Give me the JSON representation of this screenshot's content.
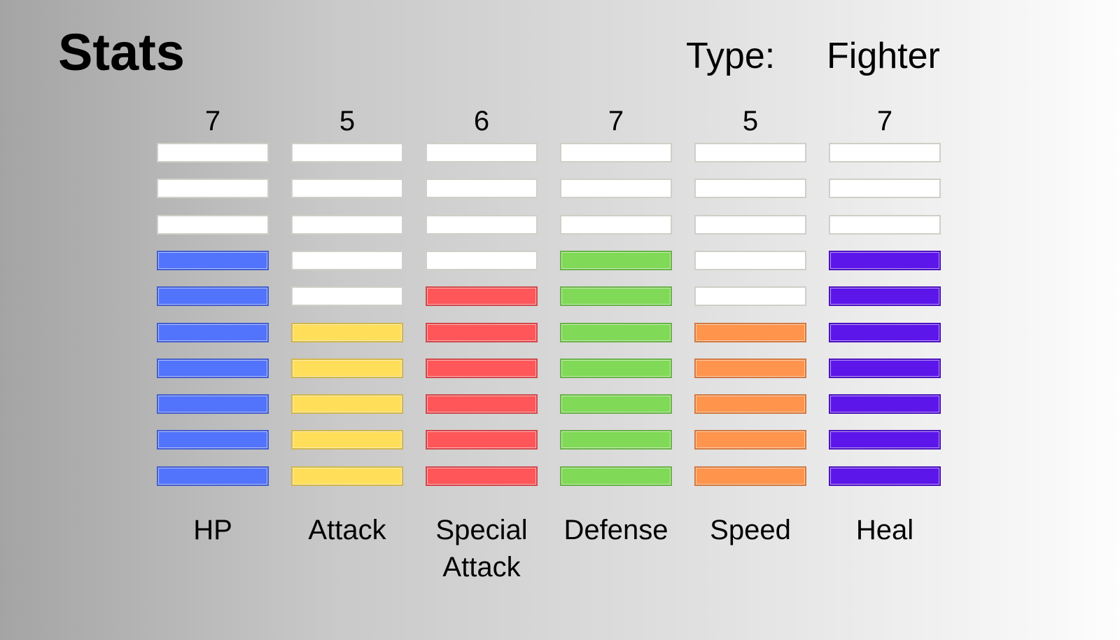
{
  "header": {
    "title": "Stats",
    "type_label": "Type:",
    "type_value": "Fighter"
  },
  "chart_data": {
    "type": "bar",
    "title": "Stats",
    "max": 10,
    "categories": [
      "HP",
      "Attack",
      "Special\nAttack",
      "Defense",
      "Speed",
      "Heal"
    ],
    "values": [
      7,
      5,
      6,
      7,
      5,
      7
    ],
    "value_labels": [
      "7",
      "5",
      "6",
      "7",
      "5",
      "7"
    ],
    "colors": [
      "#5273fb",
      "#ffde5a",
      "#ff5659",
      "#80d957",
      "#ff944d",
      "#5d16ea"
    ],
    "empty_color": "#ffffff"
  }
}
